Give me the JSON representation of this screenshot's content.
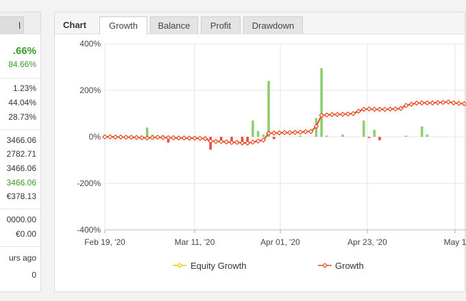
{
  "stats_panel": {
    "tab_label": "l",
    "gain": ".66%",
    "abs_gain": "84.66%",
    "daily": "1.23%",
    "monthly": "44.04%",
    "drawdown": "28.73%",
    "balance": "3466.06",
    "equity": "2782.71",
    "highest": "3466.06",
    "profit": "3466.06",
    "interest": "€378.13",
    "deposits": "0000.00",
    "withdrawals": "€0.00",
    "updated": "urs ago",
    "tracking": "0"
  },
  "chart_panel": {
    "title": "Chart",
    "tabs": [
      "Growth",
      "Balance",
      "Profit",
      "Drawdown"
    ],
    "active_tab": "Growth"
  },
  "chart_data": {
    "type": "line",
    "y_ticks": [
      "400%",
      "200%",
      "0%",
      "-200%",
      "-400%"
    ],
    "ylim": [
      -400,
      400
    ],
    "x_ticks": [
      "Feb 19, '20",
      "Mar 11, '20",
      "Apr 01, '20",
      "Apr 23, '20",
      "May 1"
    ],
    "legend": [
      "Equity Growth",
      "Growth"
    ],
    "colors": {
      "growth": "#e8481c",
      "equity": "#f2c200",
      "bar_pos": "#8ccf6e",
      "bar_neg": "#ef4a4a"
    },
    "series": [
      {
        "name": "Growth",
        "values": [
          0,
          0,
          -1,
          -1,
          -2,
          -2,
          -3,
          -4,
          -5,
          -3,
          -2,
          -3,
          -4,
          -4,
          -5,
          -5,
          -6,
          -6,
          -7,
          -8,
          -18,
          -20,
          -20,
          -22,
          -24,
          -24,
          -26,
          -27,
          -23,
          -18,
          -14,
          15,
          16,
          17,
          18,
          18,
          19,
          20,
          22,
          23,
          45,
          92,
          94,
          96,
          96,
          97,
          98,
          100,
          110,
          118,
          120,
          118,
          118,
          118,
          119,
          120,
          122,
          135,
          140,
          145,
          146,
          146,
          146,
          147,
          148,
          150,
          146,
          144,
          142
        ]
      }
    ],
    "bars": [
      0,
      0,
      0,
      0,
      0,
      0,
      0,
      0,
      40,
      8,
      5,
      6,
      -25,
      0,
      0,
      0,
      0,
      0,
      0,
      -10,
      -55,
      0,
      -20,
      0,
      -20,
      0,
      -20,
      -20,
      70,
      25,
      10,
      240,
      -10,
      0,
      0,
      0,
      0,
      5,
      0,
      0,
      80,
      295,
      5,
      0,
      0,
      10,
      0,
      0,
      0,
      70,
      -5,
      30,
      -15,
      0,
      0,
      0,
      0,
      5,
      0,
      0,
      45,
      10,
      0,
      0,
      0,
      0,
      0,
      0,
      0
    ]
  }
}
